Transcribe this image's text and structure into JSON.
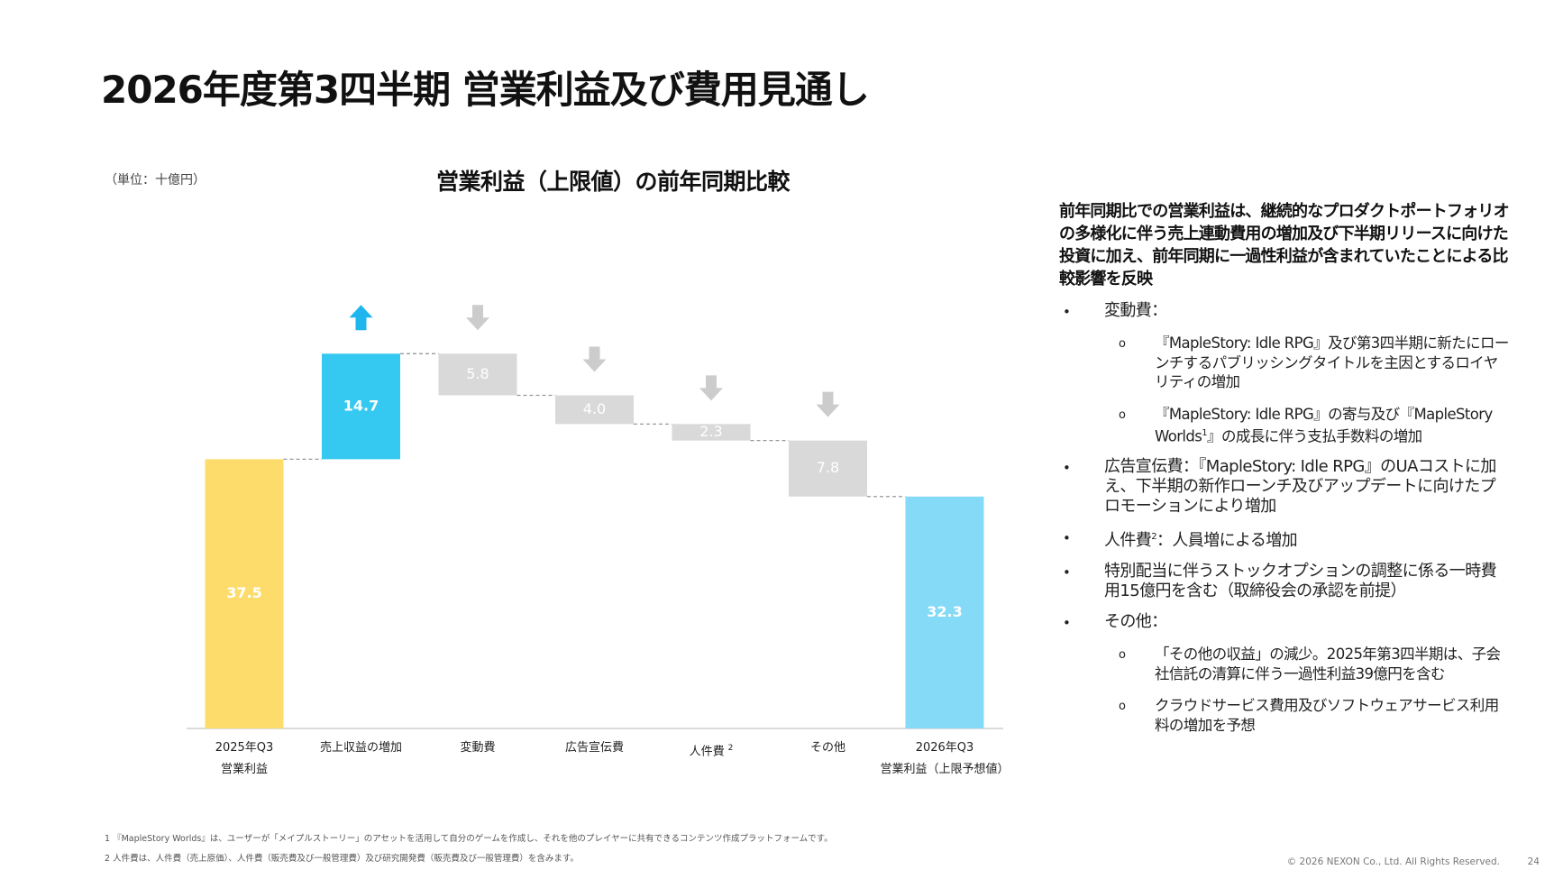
{
  "header": {
    "title": "2026年度第3四半期 営業利益及び費用見通し"
  },
  "unit_label": "（単位：十億円）",
  "chart_data": {
    "type": "waterfall",
    "title": "営業利益（上限値）の前年同期比較",
    "categories": [
      "2025年Q3\n営業利益",
      "売上収益の増加",
      "変動費",
      "広告宣伝費",
      "人件費",
      "その他",
      "2026年Q3\n営業利益（上限予想値）"
    ],
    "category_superscripts": [
      null,
      null,
      null,
      null,
      "2",
      null,
      null
    ],
    "values": [
      37.5,
      14.7,
      5.8,
      4.0,
      2.3,
      7.8,
      32.3
    ],
    "value_labels": [
      "37.5",
      "14.7",
      "5.8",
      "4.0",
      "2.3",
      "7.8",
      "32.3"
    ],
    "directions": [
      "total",
      "up",
      "down",
      "down",
      "down",
      "down",
      "total"
    ],
    "colors": [
      "#fddc6c",
      "#35c8f0",
      "#d9d9d9",
      "#d9d9d9",
      "#d9d9d9",
      "#d9d9d9",
      "#85daf8"
    ],
    "ylim": [
      0,
      55
    ]
  },
  "side_panel": {
    "summary": "前年同期比での営業利益は、継続的なプロダクトポートフォリオの多様化に伴う売上連動費用の増加及び下半期リリースに向けた投資に加え、前年同期に一過性利益が含まれていたことによる比較影響を反映",
    "bullets": [
      {
        "parts": [
          {
            "text": "変動費："
          }
        ],
        "subs": [
          {
            "parts": [
              {
                "text": "『MapleStory: Idle RPG』及び第3四半期に新たにローンチするパブリッシングタイトルを主因とするロイヤリティの増加"
              }
            ]
          },
          {
            "parts": [
              {
                "text": "『MapleStory: Idle RPG』の寄与及び『MapleStory Worlds"
              },
              {
                "sup": "1"
              },
              {
                "text": "』の成長に伴う支払手数料の増加"
              }
            ]
          }
        ]
      },
      {
        "parts": [
          {
            "text": "広告宣伝費：『MapleStory: Idle RPG』のUAコストに加え、下半期の新作ローンチ及びアップデートに向けたプロモーションにより増加"
          }
        ]
      },
      {
        "parts": [
          {
            "text": "人件費"
          },
          {
            "sup": "2"
          },
          {
            "text": "：人員増による増加"
          }
        ]
      },
      {
        "parts": [
          {
            "text": "特別配当に伴うストックオプションの調整に係る一時費用15億円を含む（取締役会の承認を前提）"
          }
        ]
      },
      {
        "parts": [
          {
            "text": "その他："
          }
        ],
        "subs": [
          {
            "parts": [
              {
                "text": "「その他の収益」の減少。2025年第3四半期は、子会社信託の清算に伴う一過性利益39億円を含む"
              }
            ]
          },
          {
            "parts": [
              {
                "text": "クラウドサービス費用及びソフトウェアサービス利用料の増加を予想"
              }
            ]
          }
        ]
      }
    ]
  },
  "footnotes": [
    "1 『MapleStory Worlds』は、ユーザーが「メイプルストーリー」のアセットを活用して自分のゲームを作成し、それを他のプレイヤーに共有できるコンテンツ作成プラットフォームです。",
    "2 人件費は、人件費（売上原価）、人件費（販売費及び一般管理費）及び研究開発費（販売費及び一般管理費）を含みます。"
  ],
  "footer": {
    "copyright": "© 2026 NEXON Co., Ltd. All Rights Reserved.",
    "page": "24"
  }
}
